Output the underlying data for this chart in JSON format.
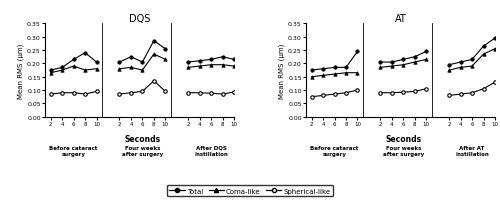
{
  "title_left": "DQS",
  "title_right": "AT",
  "ylabel": "Mean RMS (μm)",
  "xlabel": "Seconds",
  "ylim": [
    0.0,
    0.35
  ],
  "yticks": [
    0.0,
    0.05,
    0.1,
    0.15,
    0.2,
    0.25,
    0.3,
    0.35
  ],
  "xticks": [
    2,
    4,
    6,
    8,
    10
  ],
  "segments_dqs": [
    "Before cataract\nsurgery",
    "Four weeks\nafter surgery",
    "After DQS\ninstillation"
  ],
  "segments_at": [
    "Before cataract\nsurgery",
    "Four weeks\nafter surgery",
    "After AT\ninstillation"
  ],
  "dqs_total": [
    [
      0.175,
      0.185,
      0.215,
      0.24,
      0.205
    ],
    [
      0.205,
      0.225,
      0.205,
      0.285,
      0.255
    ],
    [
      0.205,
      0.21,
      0.215,
      0.225,
      0.215
    ]
  ],
  "dqs_coma": [
    [
      0.165,
      0.175,
      0.19,
      0.175,
      0.18
    ],
    [
      0.18,
      0.185,
      0.175,
      0.235,
      0.215
    ],
    [
      0.185,
      0.19,
      0.195,
      0.195,
      0.19
    ]
  ],
  "dqs_spherical": [
    [
      0.085,
      0.09,
      0.09,
      0.085,
      0.095
    ],
    [
      0.085,
      0.09,
      0.095,
      0.135,
      0.095
    ],
    [
      0.09,
      0.09,
      0.088,
      0.085,
      0.093
    ]
  ],
  "at_total": [
    [
      0.175,
      0.18,
      0.185,
      0.185,
      0.245
    ],
    [
      0.205,
      0.205,
      0.215,
      0.225,
      0.245
    ],
    [
      0.195,
      0.205,
      0.215,
      0.265,
      0.295
    ]
  ],
  "at_coma": [
    [
      0.15,
      0.155,
      0.16,
      0.165,
      0.165
    ],
    [
      0.185,
      0.19,
      0.195,
      0.205,
      0.215
    ],
    [
      0.175,
      0.185,
      0.19,
      0.235,
      0.255
    ]
  ],
  "at_spherical": [
    [
      0.075,
      0.08,
      0.085,
      0.09,
      0.1
    ],
    [
      0.09,
      0.09,
      0.092,
      0.095,
      0.105
    ],
    [
      0.08,
      0.085,
      0.09,
      0.105,
      0.13
    ]
  ],
  "legend_labels": [
    "Total",
    "Coma-like",
    "Spherical-like"
  ]
}
